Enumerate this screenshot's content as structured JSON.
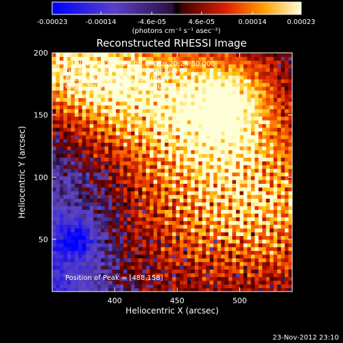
{
  "chart_data": {
    "type": "heatmap",
    "title": "Reconstructed RHESSI Image",
    "xlabel": "Heliocentric X (arcsec)",
    "ylabel": "Heliocentric Y (arcsec)",
    "xlim": [
      350,
      542
    ],
    "ylim": [
      8,
      200
    ],
    "x_ticks": [
      400,
      450,
      500
    ],
    "y_ticks": [
      50,
      100,
      150,
      200
    ],
    "colorbar": {
      "units": "(photons cm⁻² s⁻¹ asec⁻²)",
      "range": [
        -0.00023,
        0.00023
      ],
      "tick_labels": [
        "-0.00023",
        "-0.00014",
        "-4.6e-05",
        "4.6e-05",
        "0.00014",
        "0.00023"
      ],
      "tick_values": [
        -0.00023,
        -0.00014,
        -4.6e-05,
        4.6e-05,
        0.00014,
        0.00023
      ]
    },
    "annotations": [
      "23-Nov-2012 20:21:08.000 to 20:24:50.000",
      "Detectors: 3F 5F 6F 7F 8F 9F, Att 1",
      "Energy Range: 25.0 - 50.0 keV",
      "Clean     Total counts: 6.46E+03"
    ],
    "peak_label": "Position of Peak = [488,158]",
    "peak": [
      488,
      158
    ],
    "weak_source": [
      370,
      50
    ],
    "footer_timestamp": "23-Nov-2012 23:10",
    "colormap_name": "blue-white-red",
    "colors": {
      "background": "#000000",
      "text": "#ffffff",
      "neg_max": "#0000ff",
      "pos_max": "#ffffdd"
    }
  }
}
